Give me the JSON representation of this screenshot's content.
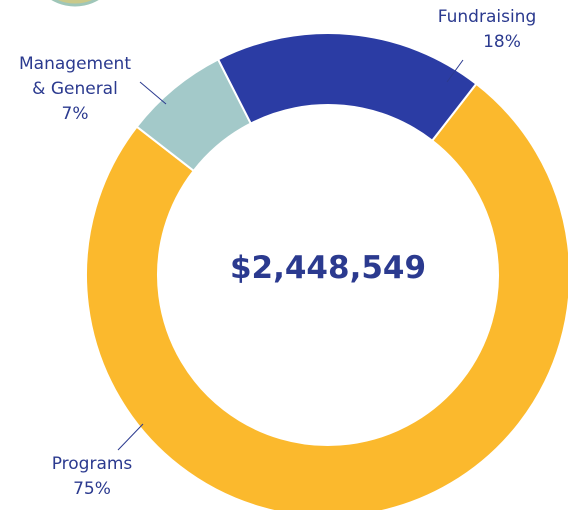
{
  "chart_data": {
    "type": "donut",
    "center_label": "$2,448,549",
    "categories": [
      "Programs",
      "Management & General",
      "Fundraising"
    ],
    "values": [
      75,
      7,
      18
    ],
    "value_labels": [
      "75%",
      "7%",
      "18%"
    ],
    "colors": [
      "#fbb92d",
      "#a3c9c9",
      "#2b3ca4"
    ]
  }
}
